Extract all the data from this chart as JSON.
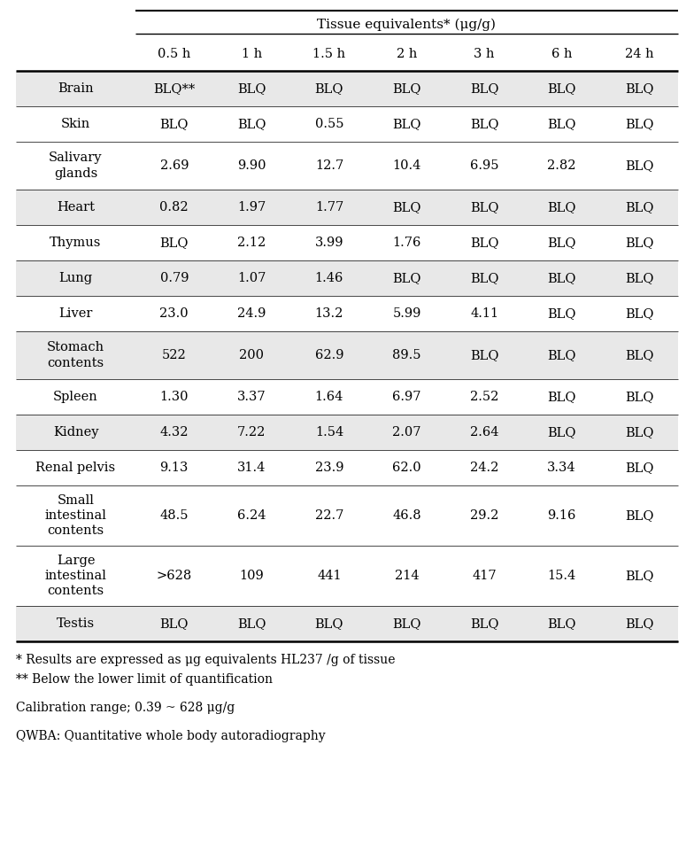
{
  "header_main": "Tissue equivalents* (μg/g)",
  "col_headers": [
    "0.5 h",
    "1 h",
    "1.5 h",
    "2 h",
    "3 h",
    "6 h",
    "24 h"
  ],
  "rows": [
    {
      "label": "Brain",
      "values": [
        "BLQ**",
        "BLQ",
        "BLQ",
        "BLQ",
        "BLQ",
        "BLQ",
        "BLQ"
      ],
      "shaded": true
    },
    {
      "label": "Skin",
      "values": [
        "BLQ",
        "BLQ",
        "0.55",
        "BLQ",
        "BLQ",
        "BLQ",
        "BLQ"
      ],
      "shaded": false
    },
    {
      "label": "Salivary\nglands",
      "values": [
        "2.69",
        "9.90",
        "12.7",
        "10.4",
        "6.95",
        "2.82",
        "BLQ"
      ],
      "shaded": false
    },
    {
      "label": "Heart",
      "values": [
        "0.82",
        "1.97",
        "1.77",
        "BLQ",
        "BLQ",
        "BLQ",
        "BLQ"
      ],
      "shaded": true
    },
    {
      "label": "Thymus",
      "values": [
        "BLQ",
        "2.12",
        "3.99",
        "1.76",
        "BLQ",
        "BLQ",
        "BLQ"
      ],
      "shaded": false
    },
    {
      "label": "Lung",
      "values": [
        "0.79",
        "1.07",
        "1.46",
        "BLQ",
        "BLQ",
        "BLQ",
        "BLQ"
      ],
      "shaded": true
    },
    {
      "label": "Liver",
      "values": [
        "23.0",
        "24.9",
        "13.2",
        "5.99",
        "4.11",
        "BLQ",
        "BLQ"
      ],
      "shaded": false
    },
    {
      "label": "Stomach\ncontents",
      "values": [
        "522",
        "200",
        "62.9",
        "89.5",
        "BLQ",
        "BLQ",
        "BLQ"
      ],
      "shaded": true
    },
    {
      "label": "Spleen",
      "values": [
        "1.30",
        "3.37",
        "1.64",
        "6.97",
        "2.52",
        "BLQ",
        "BLQ"
      ],
      "shaded": false
    },
    {
      "label": "Kidney",
      "values": [
        "4.32",
        "7.22",
        "1.54",
        "2.07",
        "2.64",
        "BLQ",
        "BLQ"
      ],
      "shaded": true
    },
    {
      "label": "Renal pelvis",
      "values": [
        "9.13",
        "31.4",
        "23.9",
        "62.0",
        "24.2",
        "3.34",
        "BLQ"
      ],
      "shaded": false
    },
    {
      "label": "Small\nintestinal\ncontents",
      "values": [
        "48.5",
        "6.24",
        "22.7",
        "46.8",
        "29.2",
        "9.16",
        "BLQ"
      ],
      "shaded": false
    },
    {
      "label": "Large\nintestinal\ncontents",
      "values": [
        ">628",
        "109",
        "441",
        "214",
        "417",
        "15.4",
        "BLQ"
      ],
      "shaded": false
    },
    {
      "label": "Testis",
      "values": [
        "BLQ",
        "BLQ",
        "BLQ",
        "BLQ",
        "BLQ",
        "BLQ",
        "BLQ"
      ],
      "shaded": true
    }
  ],
  "footnotes": [
    "* Results are expressed as μg equivalents HL237 /g of tissue",
    "** Below the lower limit of quantification",
    "Calibration range; 0.39 ~ 628 μg/g",
    "QWBA: Quantitative whole body autoradiography"
  ],
  "shaded_color": "#e8e8e8",
  "text_color": "#000000",
  "font_size": 10.5,
  "header_font_size": 11,
  "footnote_font_size": 10,
  "fig_width": 7.84,
  "fig_height": 9.55,
  "dpi": 100
}
